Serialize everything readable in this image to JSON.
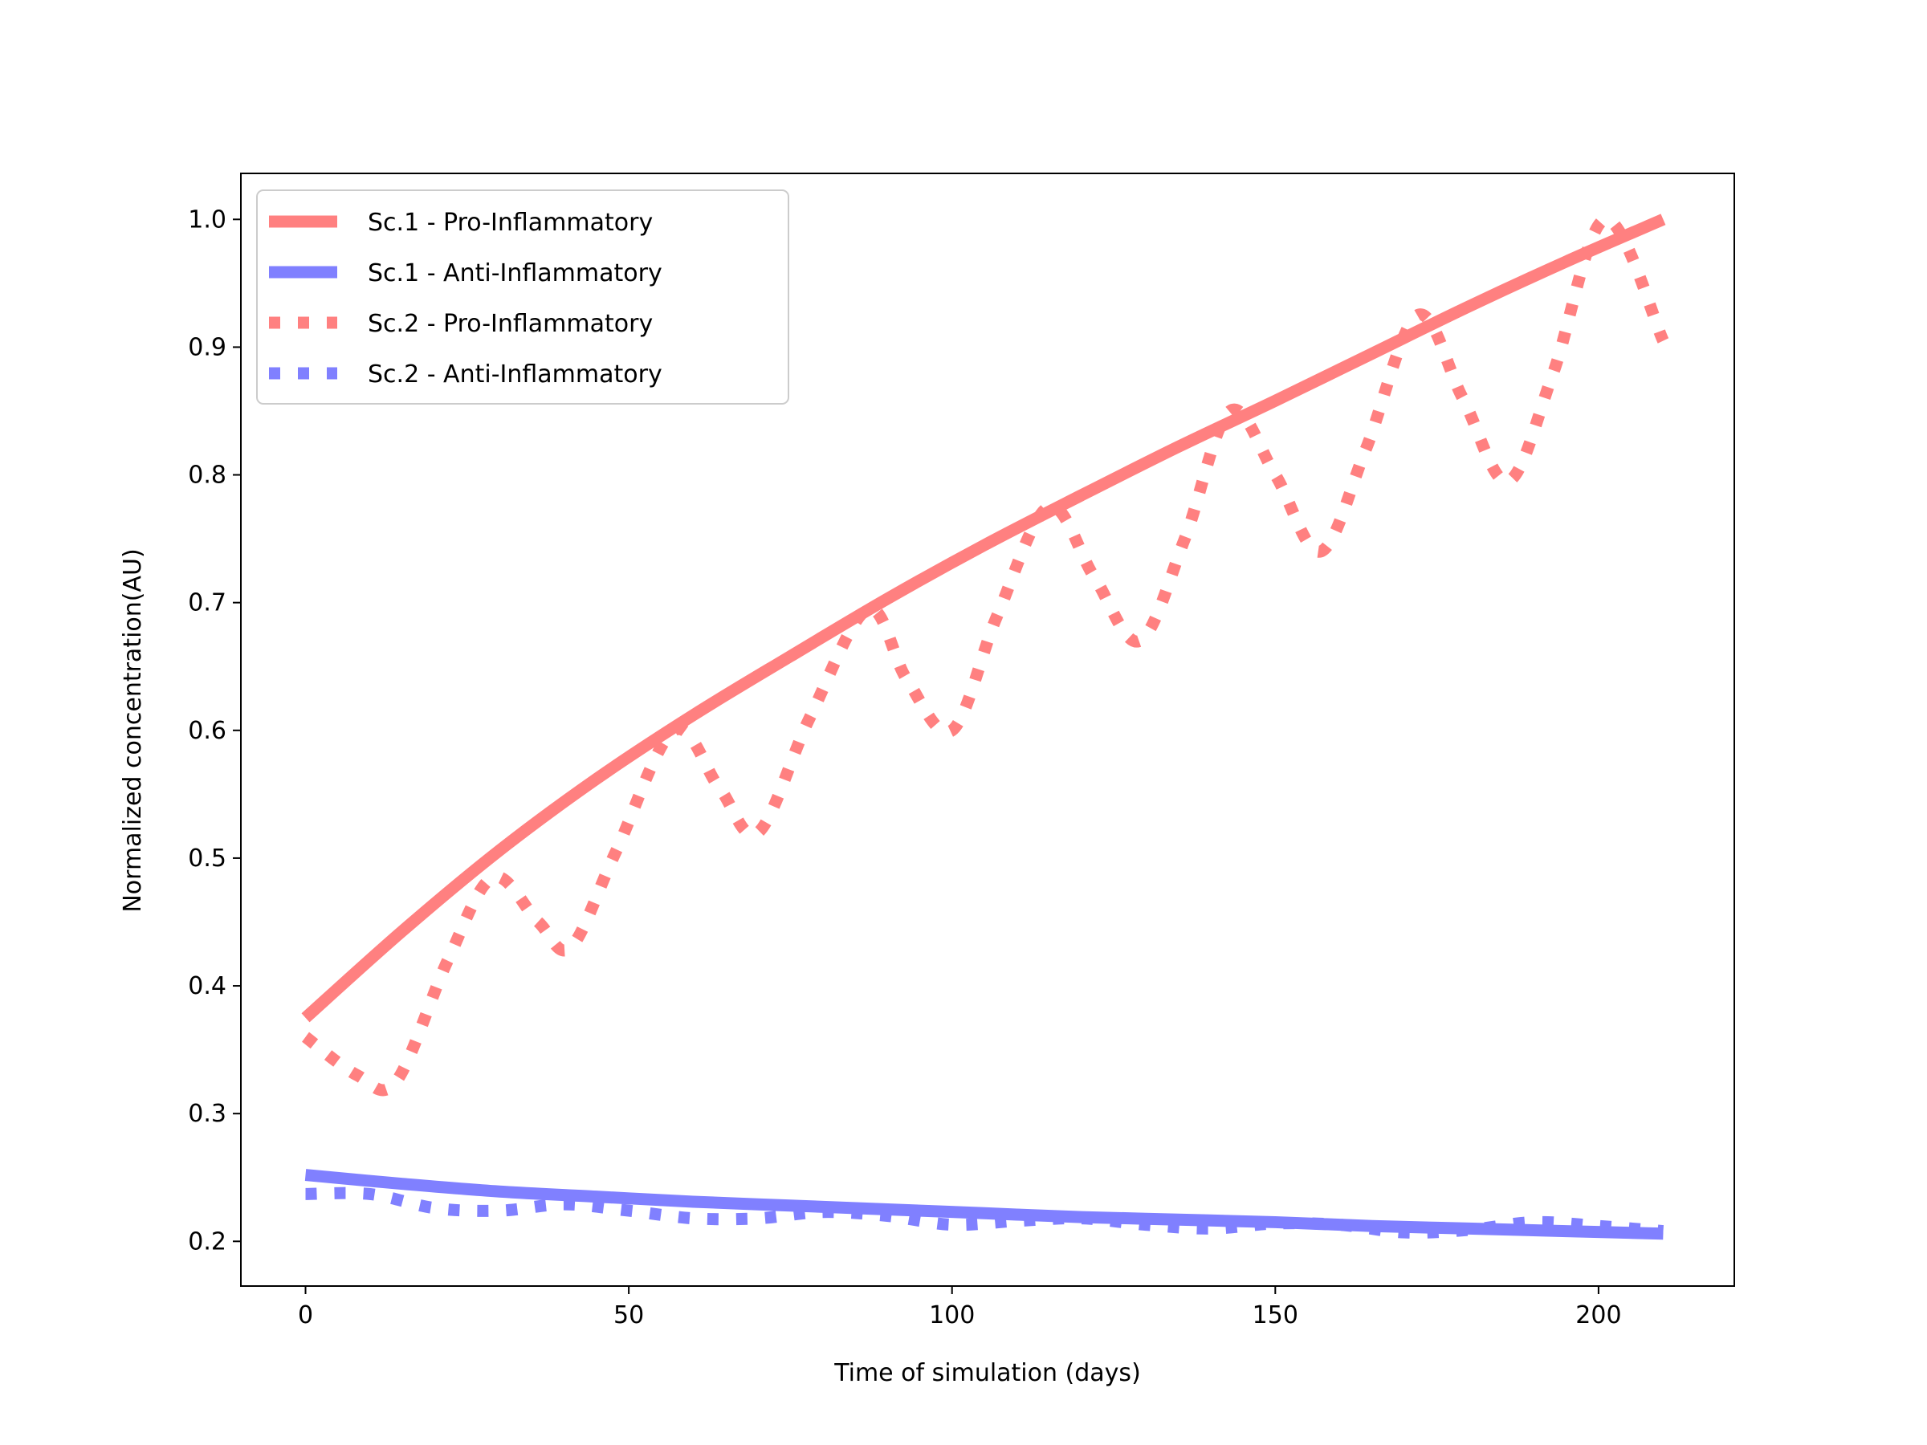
{
  "chart_data": {
    "type": "line",
    "title": "",
    "xlabel": "Time of simulation (days)",
    "ylabel": "Normalized concentration(AU)",
    "xlim": [
      -10,
      221
    ],
    "ylim": [
      0.165,
      1.036
    ],
    "xticks": [
      0,
      50,
      100,
      150,
      200
    ],
    "xtick_labels": [
      "0",
      "50",
      "100",
      "150",
      "200"
    ],
    "yticks": [
      0.2,
      0.3,
      0.4,
      0.5,
      0.6,
      0.7,
      0.8,
      0.9,
      1.0
    ],
    "ytick_labels": [
      "0.2",
      "0.3",
      "0.4",
      "0.5",
      "0.6",
      "0.7",
      "0.8",
      "0.9",
      "1.0"
    ],
    "grid": false,
    "legend_position": "top-left",
    "series": [
      {
        "name": "Sc.1 - Pro-Inflammatory",
        "color": "#ff8080",
        "line_style": "solid",
        "x": [
          0,
          15,
          30,
          45,
          60,
          75,
          90,
          105,
          120,
          135,
          150,
          165,
          180,
          195,
          210
        ],
        "y": [
          0.375,
          0.443,
          0.506,
          0.562,
          0.612,
          0.658,
          0.703,
          0.745,
          0.784,
          0.822,
          0.858,
          0.895,
          0.932,
          0.967,
          1.0
        ]
      },
      {
        "name": "Sc.1 - Anti-Inflammatory",
        "color": "#8080ff",
        "line_style": "solid",
        "x": [
          0,
          15,
          30,
          45,
          60,
          75,
          90,
          105,
          120,
          135,
          150,
          165,
          180,
          195,
          210
        ],
        "y": [
          0.252,
          0.245,
          0.239,
          0.235,
          0.231,
          0.228,
          0.225,
          0.222,
          0.219,
          0.217,
          0.215,
          0.212,
          0.21,
          0.208,
          0.206
        ]
      },
      {
        "name": "Sc.2 - Pro-Inflammatory",
        "color": "#ff8080",
        "line_style": "dotted",
        "x": [
          0,
          8,
          14,
          22,
          29,
          36,
          41,
          48,
          57,
          64,
          70,
          78,
          87,
          93,
          100,
          107,
          115,
          122,
          129,
          136,
          143,
          150,
          157,
          164,
          172,
          179,
          186,
          193,
          201,
          210
        ],
        "y": [
          0.36,
          0.33,
          0.325,
          0.42,
          0.485,
          0.45,
          0.43,
          0.505,
          0.6,
          0.555,
          0.52,
          0.61,
          0.695,
          0.64,
          0.6,
          0.69,
          0.775,
          0.72,
          0.67,
          0.75,
          0.85,
          0.8,
          0.74,
          0.82,
          0.925,
          0.86,
          0.795,
          0.88,
          1.0,
          0.905
        ]
      },
      {
        "name": "Sc.2 - Anti-Inflammatory",
        "color": "#8080ff",
        "line_style": "dotted",
        "x": [
          0,
          10,
          20,
          30,
          40,
          50,
          60,
          70,
          80,
          90,
          100,
          110,
          120,
          130,
          140,
          150,
          160,
          170,
          180,
          190,
          200,
          210
        ],
        "y": [
          0.237,
          0.237,
          0.226,
          0.224,
          0.229,
          0.224,
          0.218,
          0.218,
          0.223,
          0.22,
          0.213,
          0.216,
          0.218,
          0.213,
          0.21,
          0.214,
          0.213,
          0.207,
          0.209,
          0.215,
          0.212,
          0.208
        ]
      }
    ]
  }
}
